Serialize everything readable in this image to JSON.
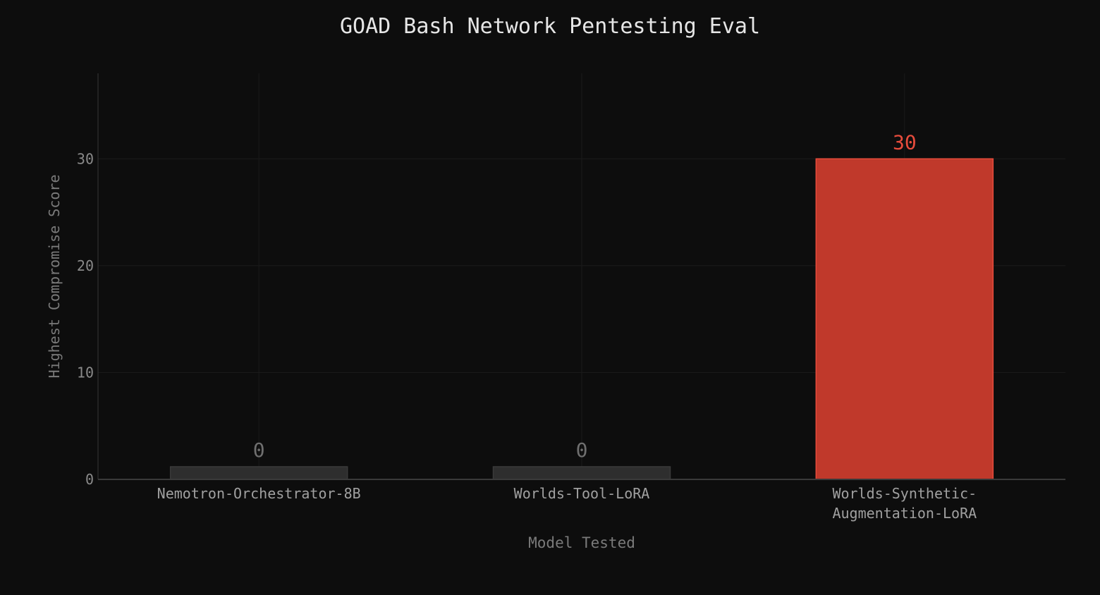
{
  "chart_data": {
    "type": "bar",
    "title": "GOAD Bash Network Pentesting Eval",
    "xlabel": "Model Tested",
    "ylabel": "Highest Compromise Score",
    "categories": [
      [
        "Nemotron-Orchestrator-8B"
      ],
      [
        "Worlds-Tool-LoRA"
      ],
      [
        "Worlds-Synthetic-",
        "Augmentation-LoRA"
      ]
    ],
    "values": [
      0,
      0,
      30
    ],
    "data_labels": [
      "0",
      "0",
      "30"
    ],
    "bar_colors": [
      "#2e2e2e",
      "#2e2e2e",
      "#c0392b"
    ],
    "bar_edge_colors": [
      "#3a3a3a",
      "#3a3a3a",
      "#e74c3c"
    ],
    "label_colors": [
      "#6f6f6f",
      "#6f6f6f",
      "#e74c3c"
    ],
    "yticks": [
      0,
      10,
      20,
      30
    ],
    "ylim": [
      0,
      38
    ],
    "grid": true,
    "background": "#0d0d0d"
  }
}
